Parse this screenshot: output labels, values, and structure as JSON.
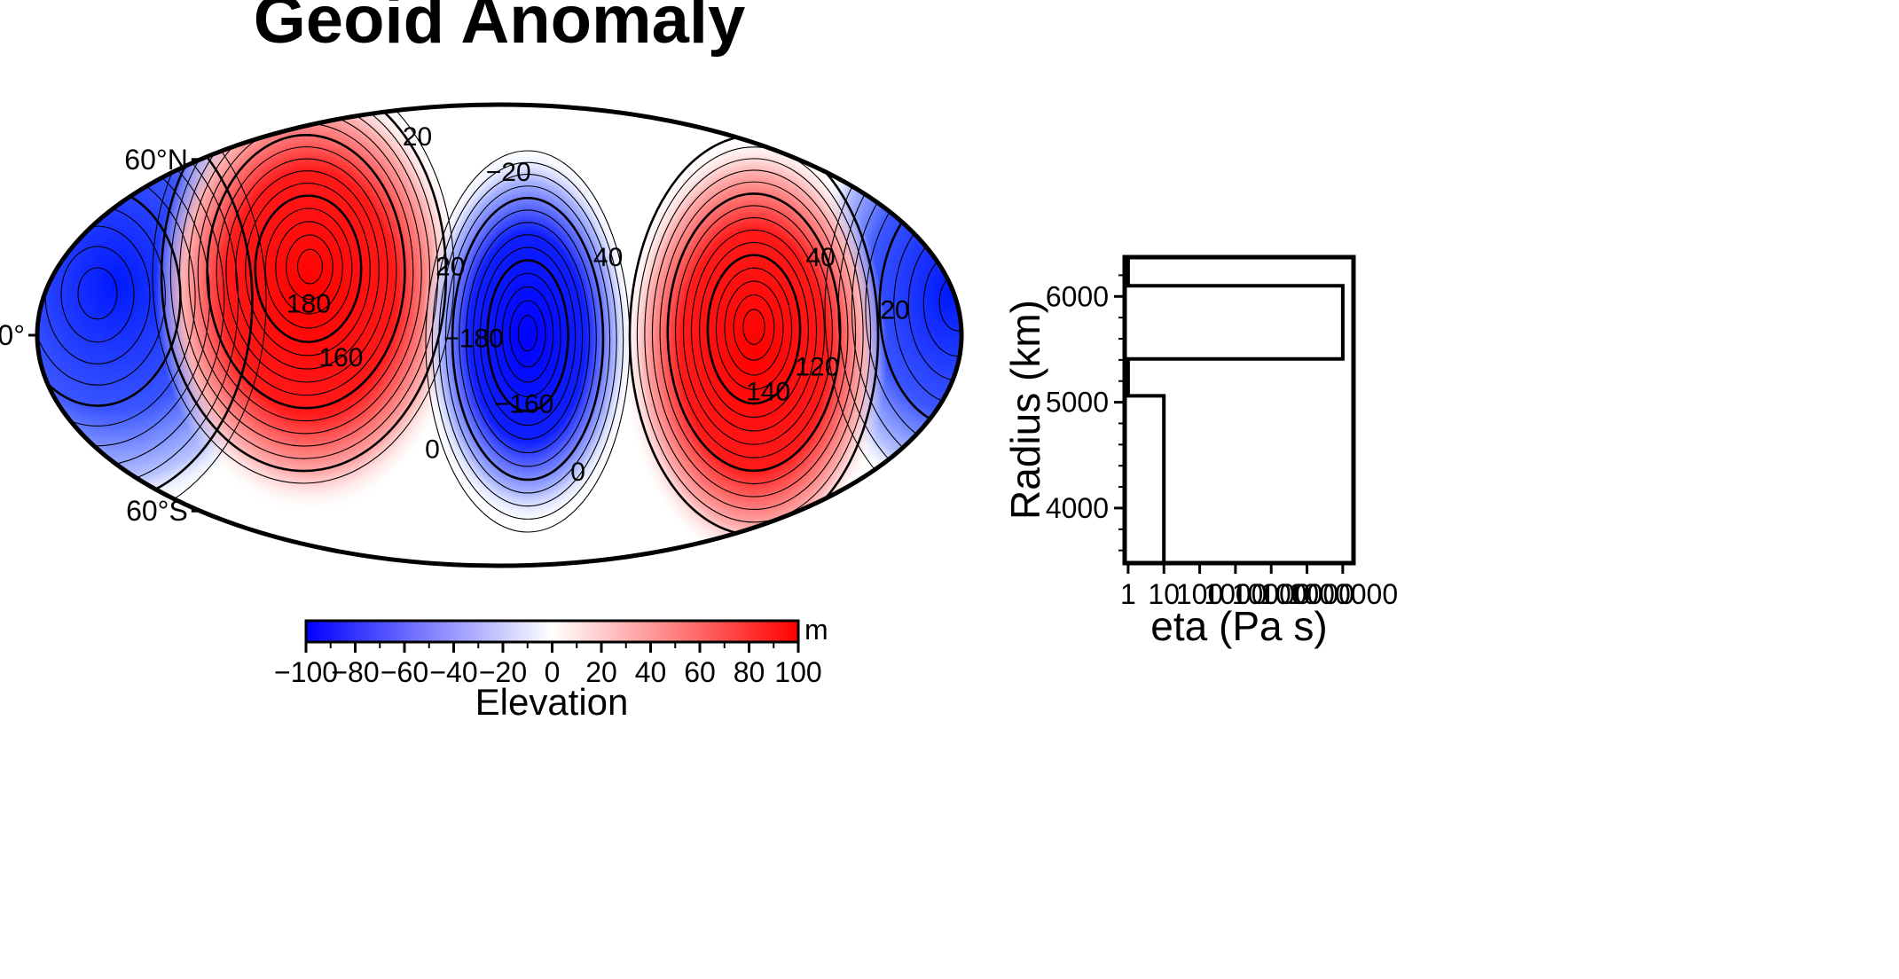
{
  "chart_data": [
    {
      "type": "heatmap",
      "title": "Geoid Anomaly",
      "projection": "mollweide",
      "lat_labels": [
        "60°N",
        "0°",
        "60°S"
      ],
      "lat_values": [
        60,
        0,
        -60
      ],
      "contour_labels": [
        {
          "text": "20",
          "lon": -63,
          "lat": 70
        },
        {
          "text": "-20",
          "lon": 5,
          "lat": 55
        },
        {
          "text": "20",
          "lon": -20,
          "lat": 22
        },
        {
          "text": "40",
          "lon": 45,
          "lat": 25
        },
        {
          "text": "180",
          "lon": -75,
          "lat": 10
        },
        {
          "text": "160",
          "lon": -62,
          "lat": -7
        },
        {
          "text": "-180",
          "lon": -10,
          "lat": -1
        },
        {
          "text": "-160",
          "lon": 10,
          "lat": -22
        },
        {
          "text": "0",
          "lon": -30,
          "lat": -37
        },
        {
          "text": "0",
          "lon": 38,
          "lat": -45
        },
        {
          "text": "140",
          "lon": 108,
          "lat": -18
        },
        {
          "text": "40",
          "lon": 133,
          "lat": 25
        },
        {
          "text": "20",
          "lon": 155,
          "lat": 8
        },
        {
          "text": "120",
          "lon": 125,
          "lat": -10
        }
      ],
      "colorbar": {
        "min": -100,
        "max": 100,
        "ticks": [
          -100,
          -80,
          -60,
          -40,
          -20,
          0,
          20,
          40,
          60,
          80,
          100
        ],
        "tick_labels": [
          "−100",
          "−80",
          "−60",
          "−40",
          "−20",
          "0",
          "20",
          "40",
          "60",
          "80",
          "100"
        ],
        "unit": "m",
        "label": "Elevation",
        "colors": {
          "low": "#0000ff",
          "mid": "#ffffff",
          "high": "#ff0000"
        }
      }
    },
    {
      "type": "line",
      "xlabel": "eta (Pa s)",
      "ylabel": "Radius (km)",
      "xscale": "log",
      "xlim": [
        0.8,
        2000000
      ],
      "ylim": [
        3480,
        6371
      ],
      "xticks": [
        1,
        10,
        100,
        1000,
        10000,
        100000,
        1000000
      ],
      "xtick_labels": [
        "1",
        "10",
        "100",
        "1000",
        "10000",
        "100000",
        "1000000"
      ],
      "yticks": [
        4000,
        5000,
        6000
      ],
      "ytick_labels": [
        "4000",
        "5000",
        "6000"
      ],
      "series": [
        {
          "x": [
            1,
            1,
            1000000,
            1000000,
            1,
            1,
            10,
            10
          ],
          "y": [
            6371,
            6100,
            6100,
            5410,
            5410,
            5060,
            5060,
            3480
          ]
        }
      ]
    }
  ]
}
